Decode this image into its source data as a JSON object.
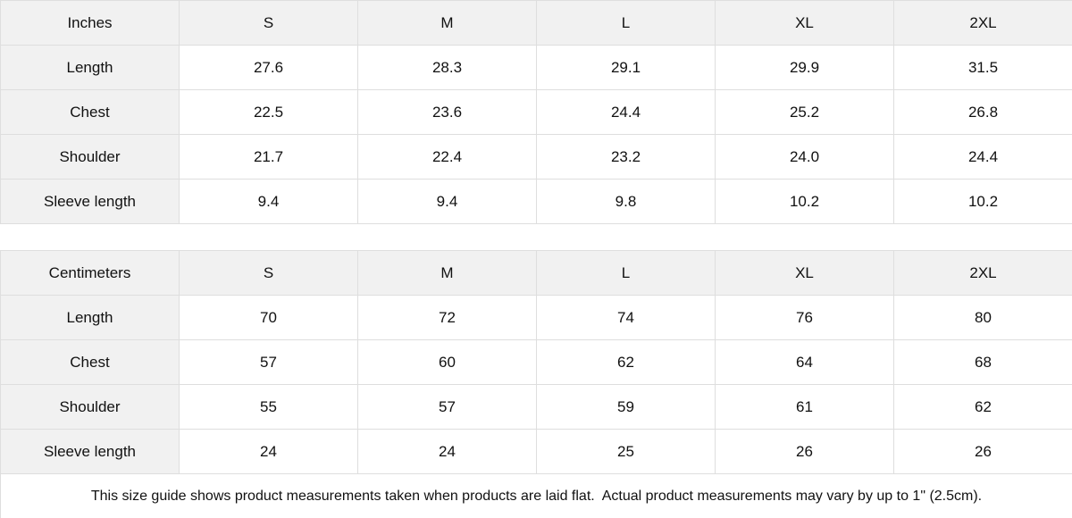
{
  "chart_data": [
    {
      "type": "table",
      "unit": "Inches",
      "header": [
        "Inches",
        "S",
        "M",
        "L",
        "XL",
        "2XL"
      ],
      "rows": [
        [
          "Length",
          "27.6",
          "28.3",
          "29.1",
          "29.9",
          "31.5"
        ],
        [
          "Chest",
          "22.5",
          "23.6",
          "24.4",
          "25.2",
          "26.8"
        ],
        [
          "Shoulder",
          "21.7",
          "22.4",
          "23.2",
          "24.0",
          "24.4"
        ],
        [
          "Sleeve length",
          "9.4",
          "9.4",
          "9.8",
          "10.2",
          "10.2"
        ]
      ]
    },
    {
      "type": "table",
      "unit": "Centimeters",
      "header": [
        "Centimeters",
        "S",
        "M",
        "L",
        "XL",
        "2XL"
      ],
      "rows": [
        [
          "Length",
          "70",
          "72",
          "74",
          "76",
          "80"
        ],
        [
          "Chest",
          "57",
          "60",
          "62",
          "64",
          "68"
        ],
        [
          "Shoulder",
          "55",
          "57",
          "59",
          "61",
          "62"
        ],
        [
          "Sleeve length",
          "24",
          "24",
          "25",
          "26",
          "26"
        ]
      ]
    }
  ],
  "footer": {
    "note": "This size guide shows product measurements taken when products are laid flat.  Actual product measurements may vary by up to 1\" (2.5cm)."
  },
  "colors": {
    "header_bg": "#f1f1f1",
    "cell_bg": "#ffffff",
    "border": "#dedede",
    "text": "#111111"
  }
}
